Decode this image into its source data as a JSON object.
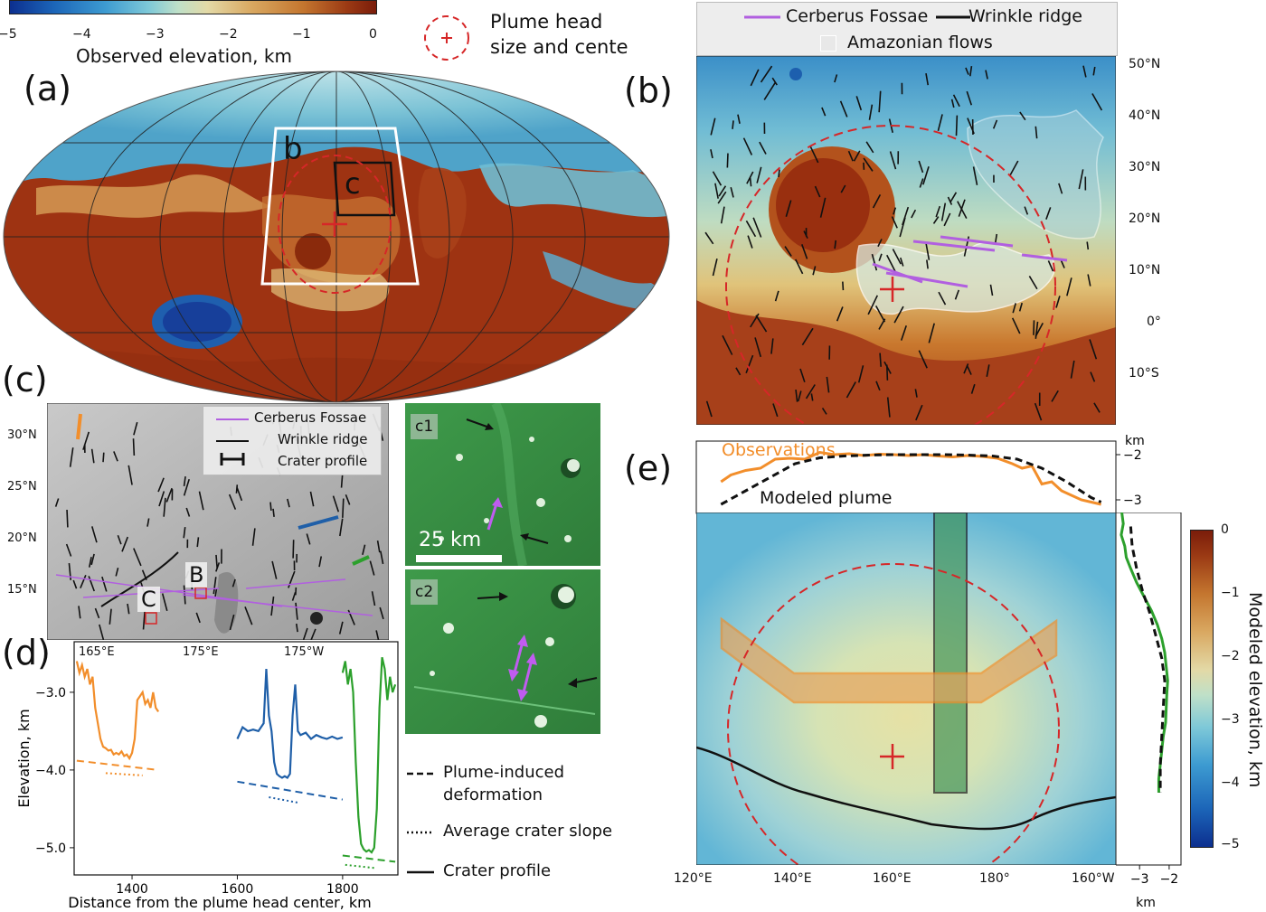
{
  "colorbar_top": {
    "ticks": [
      "−5",
      "−4",
      "−3",
      "−2",
      "−1",
      "0"
    ],
    "label": "Observed elevation, km"
  },
  "plume_legend": {
    "line1": "Plume head",
    "line2": "size and cente"
  },
  "panel_letters": {
    "a": "(a)",
    "b": "(b)",
    "c": "(c)",
    "d": "(d)",
    "e": "(e)"
  },
  "map_a": {
    "box_b": "b",
    "box_c": "c"
  },
  "panel_b": {
    "legend": {
      "fossae": "Cerberus Fossae",
      "ridge": "Wrinkle ridge",
      "flows": "Amazonian flows"
    },
    "lat_ticks": [
      "50°N",
      "40°N",
      "30°N",
      "20°N",
      "10°N",
      "0°",
      "10°S"
    ]
  },
  "panel_c": {
    "legend": {
      "fossae": "Cerberus Fossae",
      "ridge": "Wrinkle ridge",
      "crater": "Crater profile"
    },
    "lat_ticks": [
      "30°N",
      "25°N",
      "20°N",
      "15°N"
    ],
    "lon_ticks": [
      "165°E",
      "175°E",
      "175°W"
    ],
    "site_b": "B",
    "site_c": "C"
  },
  "insets": {
    "c1": "c1",
    "c2": "c2",
    "scale": "25 km"
  },
  "panel_d": {
    "ylabel": "Elevation, km",
    "xlabel": "Distance from the plume head center, km",
    "y_ticks": [
      "−3.0",
      "−4.0",
      "−5.0"
    ],
    "x_ticks": [
      "1400",
      "1600",
      "1800"
    ]
  },
  "legend_d": {
    "dashed": "Plume-induced",
    "dashed2": "deformation",
    "dotted": "Average crater slope",
    "solid": "Crater profile"
  },
  "panel_e": {
    "top": {
      "obs": "Observations",
      "model": "Modeled plume",
      "unit": "km",
      "y_ticks": [
        "−2",
        "−3"
      ]
    },
    "x_ticks": [
      "120°E",
      "140°E",
      "160°E",
      "180°",
      "160°W"
    ],
    "side_x_ticks": [
      "−3",
      "−2"
    ],
    "side_unit": "km",
    "cbar_ticks": [
      "0",
      "−1",
      "−2",
      "−3",
      "−4",
      "−5"
    ],
    "cbar_label": "Modeled elevation, km"
  },
  "chart_data": [
    {
      "type": "line",
      "panel": "d",
      "xlabel": "Distance from the plume head center, km",
      "ylabel": "Elevation, km",
      "xlim": [
        1290,
        1905
      ],
      "ylim": [
        -5.35,
        -2.35
      ],
      "series": [
        {
          "color": "#f28e2b",
          "style": "solid",
          "x": [
            1295,
            1300,
            1305,
            1310,
            1315,
            1320,
            1325,
            1330,
            1335,
            1340,
            1345,
            1350,
            1355,
            1360,
            1365,
            1370,
            1375,
            1380,
            1385,
            1390,
            1395,
            1400,
            1405,
            1410,
            1415,
            1420,
            1425,
            1430,
            1435,
            1440,
            1445,
            1450
          ],
          "y": [
            -2.6,
            -2.75,
            -2.65,
            -2.8,
            -2.7,
            -2.9,
            -2.8,
            -3.2,
            -3.4,
            -3.6,
            -3.7,
            -3.72,
            -3.75,
            -3.74,
            -3.8,
            -3.78,
            -3.8,
            -3.76,
            -3.82,
            -3.8,
            -3.85,
            -3.78,
            -3.6,
            -3.1,
            -3.05,
            -3.0,
            -3.15,
            -3.1,
            -3.2,
            -3.0,
            -3.2,
            -3.25
          ]
        },
        {
          "color": "#f28e2b",
          "style": "dashed",
          "x": [
            1295,
            1450
          ],
          "y": [
            -3.88,
            -4.0
          ]
        },
        {
          "color": "#f28e2b",
          "style": "dotted",
          "x": [
            1350,
            1420
          ],
          "y": [
            -4.04,
            -4.07
          ]
        },
        {
          "color": "#1f5fa8",
          "style": "solid",
          "x": [
            1600,
            1610,
            1620,
            1630,
            1640,
            1650,
            1655,
            1660,
            1665,
            1670,
            1675,
            1680,
            1685,
            1690,
            1695,
            1700,
            1705,
            1710,
            1715,
            1720,
            1730,
            1740,
            1750,
            1760,
            1770,
            1780,
            1790,
            1800
          ],
          "y": [
            -3.6,
            -3.45,
            -3.5,
            -3.48,
            -3.5,
            -3.4,
            -2.7,
            -3.3,
            -3.5,
            -3.9,
            -4.05,
            -4.08,
            -4.1,
            -4.08,
            -4.1,
            -4.05,
            -3.3,
            -2.9,
            -3.5,
            -3.55,
            -3.52,
            -3.6,
            -3.55,
            -3.58,
            -3.6,
            -3.57,
            -3.6,
            -3.58
          ]
        },
        {
          "color": "#1f5fa8",
          "style": "dashed",
          "x": [
            1600,
            1800
          ],
          "y": [
            -4.15,
            -4.38
          ]
        },
        {
          "color": "#1f5fa8",
          "style": "dotted",
          "x": [
            1660,
            1715
          ],
          "y": [
            -4.35,
            -4.42
          ]
        },
        {
          "color": "#2ca02c",
          "style": "solid",
          "x": [
            1800,
            1805,
            1810,
            1815,
            1820,
            1825,
            1830,
            1835,
            1840,
            1845,
            1850,
            1855,
            1860,
            1865,
            1870,
            1875,
            1880,
            1885,
            1890,
            1895,
            1900
          ],
          "y": [
            -2.75,
            -2.6,
            -2.9,
            -2.7,
            -3.0,
            -3.9,
            -4.6,
            -4.95,
            -5.02,
            -5.05,
            -5.03,
            -5.06,
            -5.0,
            -4.5,
            -3.2,
            -2.55,
            -2.7,
            -3.1,
            -2.8,
            -3.0,
            -2.9
          ]
        },
        {
          "color": "#2ca02c",
          "style": "dashed",
          "x": [
            1800,
            1900
          ],
          "y": [
            -5.1,
            -5.18
          ]
        },
        {
          "color": "#2ca02c",
          "style": "dotted",
          "x": [
            1805,
            1860
          ],
          "y": [
            -5.22,
            -5.26
          ]
        }
      ]
    },
    {
      "type": "line",
      "panel": "e-top",
      "ylim": [
        -3.3,
        -1.7
      ],
      "xlim": [
        120,
        205
      ],
      "series": [
        {
          "name": "Observations",
          "color": "#f28e2b",
          "style": "solid",
          "x": [
            125,
            127,
            130,
            133,
            136,
            139,
            142,
            145,
            148,
            151,
            154,
            157,
            160,
            163,
            166,
            169,
            172,
            175,
            178,
            181,
            184,
            186,
            188,
            190,
            192,
            194,
            196,
            198,
            200,
            202
          ],
          "y": [
            -2.6,
            -2.45,
            -2.35,
            -2.3,
            -2.1,
            -2.08,
            -2.1,
            -1.95,
            -2.0,
            -1.98,
            -2.02,
            -1.99,
            -2.0,
            -2.02,
            -2.0,
            -2.03,
            -2.05,
            -2.02,
            -2.04,
            -2.08,
            -2.2,
            -2.3,
            -2.25,
            -2.65,
            -2.6,
            -2.8,
            -2.9,
            -3.0,
            -3.05,
            -3.1
          ]
        },
        {
          "name": "Modeled plume",
          "color": "#111111",
          "style": "dashed",
          "x": [
            125,
            130,
            135,
            140,
            145,
            150,
            155,
            160,
            165,
            170,
            175,
            180,
            185,
            190,
            195,
            200,
            202
          ],
          "y": [
            -3.1,
            -2.8,
            -2.5,
            -2.2,
            -2.07,
            -2.03,
            -2.01,
            -2.0,
            -2.0,
            -2.0,
            -2.01,
            -2.03,
            -2.1,
            -2.3,
            -2.6,
            -2.95,
            -3.05
          ]
        }
      ]
    },
    {
      "type": "line",
      "panel": "e-side",
      "xlim": [
        -3.8,
        -1.6
      ],
      "series": [
        {
          "color": "#2ca02c",
          "style": "solid",
          "d": [
            0,
            0.04,
            0.08,
            0.12,
            0.16,
            0.2,
            0.25,
            0.3,
            0.35,
            0.4,
            0.45,
            0.5,
            0.55,
            0.6,
            0.65,
            0.7,
            0.75,
            0.8,
            0.85,
            0.9,
            0.95,
            1.0
          ],
          "elev": [
            -3.6,
            -3.55,
            -3.62,
            -3.5,
            -3.45,
            -3.3,
            -3.1,
            -2.85,
            -2.6,
            -2.4,
            -2.25,
            -2.15,
            -2.1,
            -2.05,
            -2.08,
            -2.1,
            -2.12,
            -2.2,
            -2.25,
            -2.3,
            -2.35,
            -2.35
          ]
        },
        {
          "color": "#111111",
          "style": "dashed",
          "d": [
            0.05,
            0.12,
            0.2,
            0.28,
            0.36,
            0.44,
            0.52,
            0.6,
            0.7,
            0.8,
            0.9,
            1.0
          ],
          "elev": [
            -3.3,
            -3.25,
            -3.1,
            -2.9,
            -2.65,
            -2.45,
            -2.25,
            -2.15,
            -2.2,
            -2.25,
            -2.3,
            -2.3
          ]
        }
      ]
    }
  ]
}
